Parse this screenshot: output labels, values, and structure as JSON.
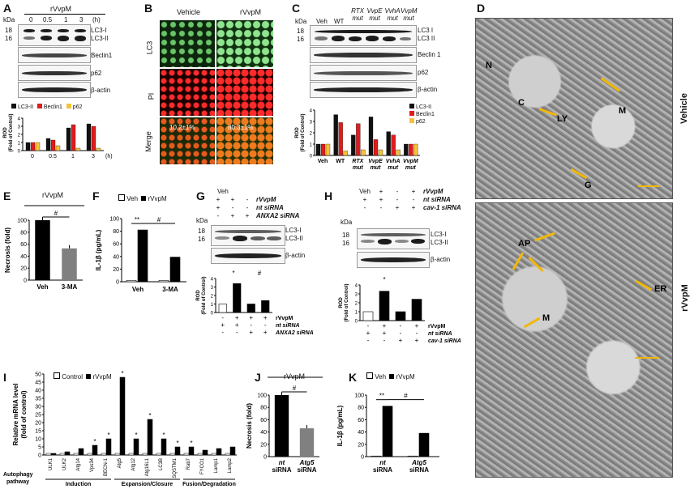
{
  "panels": {
    "A": {
      "label": "A",
      "treatment": "rVvpM",
      "time_unit": "(h)",
      "times": [
        "0",
        "0.5",
        "1",
        "3"
      ],
      "kda": "kDa",
      "mw": [
        "18",
        "16"
      ],
      "proteins": [
        "LC3-I",
        "LC3-II",
        "Beclin1",
        "p62",
        "β-actin"
      ],
      "legend": [
        "LC3-II",
        "Beclin1",
        "p62"
      ],
      "ylabel1": "ROD",
      "ylabel2": "(Fold of Control)",
      "yticks": [
        "0",
        "1",
        "2",
        "3",
        "4"
      ],
      "xticks": [
        "0",
        "0.5",
        "1",
        "3"
      ]
    },
    "B": {
      "label": "B",
      "cols": [
        "Vehicle",
        "rVvpM"
      ],
      "rows": [
        "LC3",
        "PI",
        "Merge"
      ],
      "pct_vehicle": "10.2±1%",
      "pct_rvvpm": "80.3±1%"
    },
    "C": {
      "label": "C",
      "kda": "kDa",
      "mw": [
        "18",
        "16"
      ],
      "lanes": [
        "Veh",
        "WT",
        "RTX mut",
        "VvpE mut",
        "VvhA mut",
        "VvpM mut"
      ],
      "proteins": [
        "LC3 I",
        "LC3 II",
        "Beclin 1",
        "p62",
        "β-actin"
      ],
      "legend": [
        "LC3-II",
        "Beclin1",
        "p62"
      ],
      "ylabel1": "ROD",
      "ylabel2": "(Fold of Control)",
      "yticks": [
        "0",
        "1",
        "2",
        "3",
        "4"
      ]
    },
    "D": {
      "label": "D",
      "top_side": "Vehicle",
      "bottom_side": "rVvpM",
      "top_marks": [
        "N",
        "C",
        "M",
        "LY",
        "G"
      ],
      "bottom_marks": [
        "AP",
        "ER",
        "M"
      ]
    },
    "E": {
      "label": "E",
      "treatment": "rVvpM",
      "ylabel": "Necrosis (fold)",
      "yticks": [
        "0",
        "20",
        "40",
        "60",
        "80",
        "100"
      ],
      "categories": [
        "Veh",
        "3-MA"
      ],
      "sig": "#"
    },
    "F": {
      "label": "F",
      "legend": [
        "Veh",
        "rVvpM"
      ],
      "ylabel": "IL-1β (pg/mL)",
      "yticks": [
        "0",
        "20",
        "40",
        "60",
        "80",
        "100"
      ],
      "categories": [
        "Veh",
        "3-MA"
      ],
      "sig1": "**",
      "sig2": "#"
    },
    "G": {
      "label": "G",
      "hdr": [
        "Veh",
        "+",
        "+",
        "+",
        "-"
      ],
      "kda": "kDa",
      "mw": [
        "18",
        "16"
      ],
      "proteins": [
        "LC3-I",
        "LC3-II",
        "β-actin"
      ],
      "ylabel1": "ROD",
      "ylabel2": "(Fold of Control)",
      "rows": [
        {
          "name": "rVvpM",
          "signs": [
            "-",
            "+",
            "+",
            "+",
            "-"
          ]
        },
        {
          "name": "nt siRNA",
          "signs": [
            "+",
            "+",
            "-",
            "-"
          ]
        },
        {
          "name": "ANXA2 siRNA",
          "signs": [
            "-",
            "-",
            "+",
            "+"
          ]
        }
      ],
      "top_rows": [
        {
          "name": "rVvpM",
          "signs": [
            "+",
            "+",
            "-"
          ]
        },
        {
          "name": "nt siRNA",
          "signs": [
            "+",
            "-",
            "-"
          ]
        },
        {
          "name": "ANXA2 siRNA",
          "signs": [
            "-",
            "+",
            "+"
          ]
        }
      ],
      "yticks": [
        "0",
        "1",
        "2",
        "3",
        "4"
      ],
      "sig1": "*",
      "sig2": "#"
    },
    "H": {
      "label": "H",
      "kda": "kDa",
      "mw": [
        "18",
        "16"
      ],
      "proteins": [
        "LC3-I",
        "LC3-II",
        "β-actin"
      ],
      "ylabel1": "ROD",
      "ylabel2": "(Fold of Control)",
      "yticks": [
        "0",
        "1",
        "2",
        "3",
        "4"
      ],
      "top_rows": [
        {
          "name": "rVvpM",
          "signs": [
            "Veh",
            "+",
            "-",
            "+"
          ]
        },
        {
          "name": "nt siRNA",
          "signs": [
            "+",
            "+",
            "-",
            "-"
          ]
        },
        {
          "name": "cav-1 siRNA",
          "signs": [
            "-",
            "-",
            "+",
            "+"
          ]
        }
      ],
      "rows": [
        {
          "name": "rVvpM",
          "signs": [
            "-",
            "+",
            "-",
            "+"
          ]
        },
        {
          "name": "nt siRNA",
          "signs": [
            "+",
            "+",
            "-",
            "-"
          ]
        },
        {
          "name": "cav-1 siRNA",
          "signs": [
            "-",
            "-",
            "+",
            "+"
          ]
        }
      ],
      "sig": "*"
    },
    "I": {
      "label": "I",
      "legend": [
        "Control",
        "rVvpM"
      ],
      "ylabel1": "Relative mRNA level",
      "ylabel2": "(fold of control)",
      "yticks": [
        "0",
        "5",
        "10",
        "15",
        "20",
        "25",
        "30",
        "35",
        "40",
        "45",
        "50"
      ],
      "genes": [
        "ULK1",
        "ULK2",
        "Atg14",
        "Vps34",
        "BECN-1",
        "Atg5",
        "Atg12",
        "Atg16L1",
        "LC3B",
        "SQSTM1",
        "Rab7",
        "FYCO1",
        "Lamp1",
        "Lamp2"
      ],
      "groups": [
        "Induction",
        "Expansion/Closure",
        "Fusion/Degradation"
      ],
      "pathway": "Autophagy pathway",
      "sig": "*"
    },
    "J": {
      "label": "J",
      "treatment": "rVvpM",
      "ylabel": "Necrosis (fold)",
      "yticks": [
        "0",
        "20",
        "40",
        "60",
        "80",
        "100"
      ],
      "categories": [
        "nt siRNA",
        "Atg5 siRNA"
      ],
      "cat_lines": [
        [
          "nt",
          "siRNA"
        ],
        [
          "Atg5",
          "siRNA"
        ]
      ],
      "sig": "#"
    },
    "K": {
      "label": "K",
      "legend": [
        "Veh",
        "rVvpM"
      ],
      "ylabel": "IL-1β (pg/mL)",
      "yticks": [
        "0",
        "20",
        "40",
        "60",
        "80",
        "100"
      ],
      "cat_lines": [
        [
          "nt",
          "siRNA"
        ],
        [
          "Atg5",
          "siRNA"
        ]
      ],
      "sig1": "**",
      "sig2": "#"
    }
  },
  "colors": {
    "lc3ii": "#111111",
    "beclin": "#e01b1b",
    "p62": "#f5c23a",
    "veh": "#ffffff",
    "rvvpm": "#000000",
    "gray": "#808080",
    "arrow": "#f2b705"
  },
  "chart_data": [
    {
      "panel": "A",
      "type": "bar",
      "categories": [
        "0",
        "0.5",
        "1",
        "3"
      ],
      "series": [
        {
          "name": "LC3-II",
          "values": [
            1.0,
            1.5,
            2.8,
            3.3
          ]
        },
        {
          "name": "Beclin1",
          "values": [
            1.0,
            1.3,
            3.2,
            3.0
          ]
        },
        {
          "name": "p62",
          "values": [
            1.0,
            0.6,
            0.3,
            0.3
          ]
        }
      ],
      "ylabel": "ROD (Fold of Control)",
      "ylim": [
        0,
        4
      ]
    },
    {
      "panel": "C",
      "type": "bar",
      "categories": [
        "Veh",
        "WT",
        "RTX mut",
        "VvpE mut",
        "VvhA mut",
        "VvpM mut"
      ],
      "series": [
        {
          "name": "LC3-II",
          "values": [
            1.0,
            3.6,
            1.8,
            3.4,
            2.1,
            1.0
          ]
        },
        {
          "name": "Beclin1",
          "values": [
            1.0,
            2.9,
            2.8,
            1.4,
            1.8,
            1.0
          ]
        },
        {
          "name": "p62",
          "values": [
            1.0,
            0.4,
            0.5,
            0.5,
            0.5,
            1.0
          ]
        }
      ],
      "ylabel": "ROD (Fold of Control)",
      "ylim": [
        0,
        4
      ]
    },
    {
      "panel": "E",
      "type": "bar",
      "categories": [
        "Veh",
        "3-MA"
      ],
      "values": [
        100,
        53
      ],
      "ylabel": "Necrosis (fold)",
      "ylim": [
        0,
        100
      ]
    },
    {
      "panel": "F",
      "type": "bar",
      "categories": [
        "Veh",
        "3-MA"
      ],
      "series": [
        {
          "name": "Veh",
          "values": [
            2,
            2
          ]
        },
        {
          "name": "rVvpM",
          "values": [
            82,
            39
          ]
        }
      ],
      "ylabel": "IL-1β (pg/mL)",
      "ylim": [
        0,
        100
      ]
    },
    {
      "panel": "G",
      "type": "bar",
      "categories": [
        "1",
        "2",
        "3",
        "4"
      ],
      "values": [
        1.0,
        3.4,
        1.0,
        1.4
      ],
      "ylabel": "ROD (Fold of Control)",
      "ylim": [
        0,
        4
      ]
    },
    {
      "panel": "H",
      "type": "bar",
      "categories": [
        "1",
        "2",
        "3",
        "4"
      ],
      "values": [
        1.0,
        3.3,
        1.0,
        2.4
      ],
      "ylabel": "ROD (Fold of Control)",
      "ylim": [
        0,
        4
      ]
    },
    {
      "panel": "I",
      "type": "bar",
      "categories": [
        "ULK1",
        "ULK2",
        "Atg14",
        "Vps34",
        "BECN-1",
        "Atg5",
        "Atg12",
        "Atg16L1",
        "LC3B",
        "SQSTM1",
        "Rab7",
        "FYCO1",
        "Lamp1",
        "Lamp2"
      ],
      "series": [
        {
          "name": "Control",
          "values": [
            1,
            1,
            1,
            1,
            1,
            1,
            1,
            1,
            1,
            1,
            1,
            1,
            1,
            1
          ]
        },
        {
          "name": "rVvpM",
          "values": [
            1,
            2,
            4,
            6,
            10,
            48,
            10,
            22,
            10,
            5,
            5,
            3,
            4,
            5
          ]
        }
      ],
      "ylabel": "Relative mRNA level (fold of control)",
      "ylim": [
        0,
        50
      ]
    },
    {
      "panel": "J",
      "type": "bar",
      "categories": [
        "nt siRNA",
        "Atg5 siRNA"
      ],
      "values": [
        100,
        46
      ],
      "ylabel": "Necrosis (fold)",
      "ylim": [
        0,
        100
      ]
    },
    {
      "panel": "K",
      "type": "bar",
      "categories": [
        "nt siRNA",
        "Atg5 siRNA"
      ],
      "series": [
        {
          "name": "Veh",
          "values": [
            1,
            1
          ]
        },
        {
          "name": "rVvpM",
          "values": [
            82,
            38
          ]
        }
      ],
      "ylabel": "IL-1β (pg/mL)",
      "ylim": [
        0,
        100
      ]
    }
  ]
}
